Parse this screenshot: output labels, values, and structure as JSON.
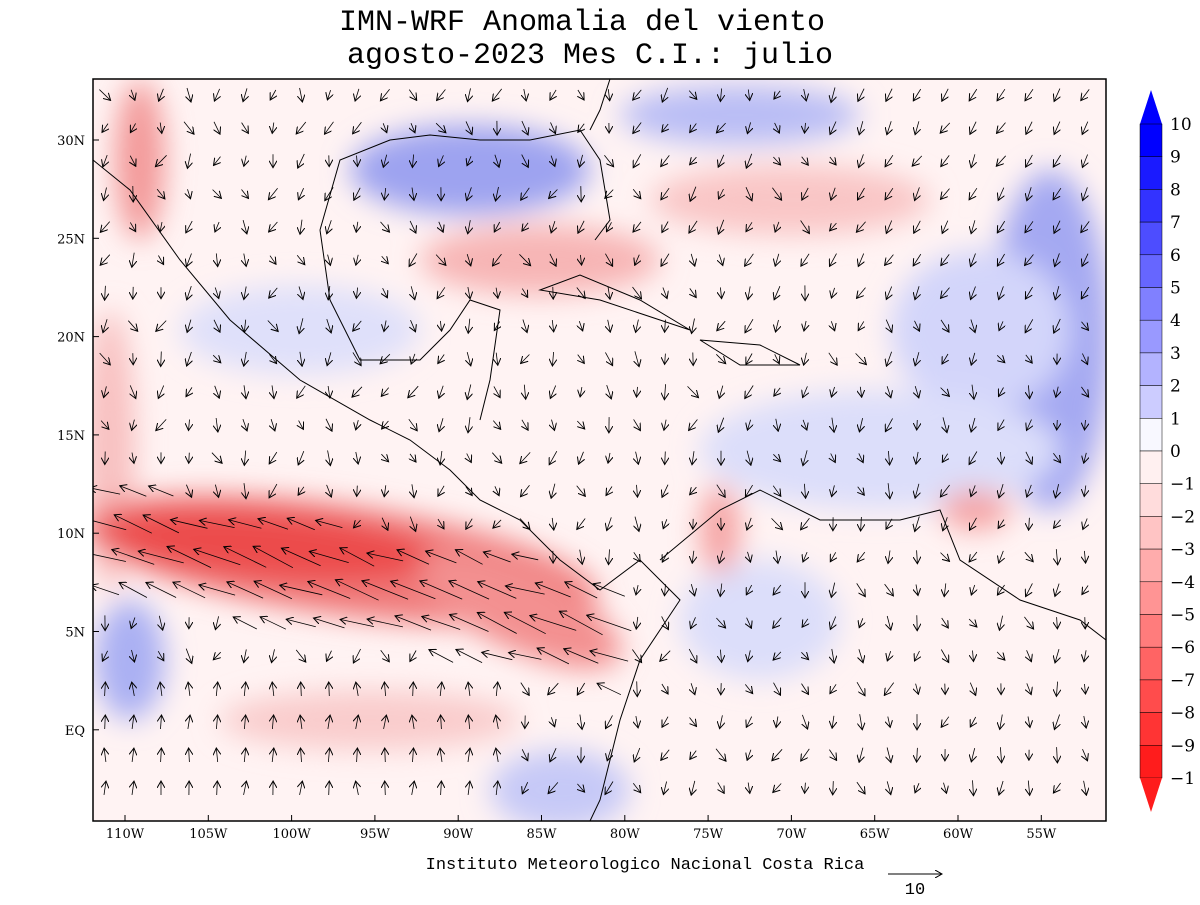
{
  "title": "IMN-WRF Anomalia del viento",
  "subtitle": "agosto-2023 Mes C.I.: julio",
  "lat_labels": [
    "30N",
    "25N",
    "20N",
    "15N",
    "10N",
    "5N",
    "EQ"
  ],
  "lon_labels": [
    "110W",
    "105W",
    "100W",
    "95W",
    "90W",
    "85W",
    "80W",
    "75W",
    "70W",
    "65W",
    "60W",
    "55W"
  ],
  "colorbar_labels": [
    "10",
    "9",
    "8",
    "7",
    "6",
    "5",
    "4",
    "3",
    "2",
    "1",
    "0",
    "−1",
    "−2",
    "−3",
    "−4",
    "−5",
    "−6",
    "−7",
    "−8",
    "−9",
    "−1"
  ],
  "credit": "Instituto Meteorologico Nacional Costa Rica",
  "reference_vector_label": "10"
}
